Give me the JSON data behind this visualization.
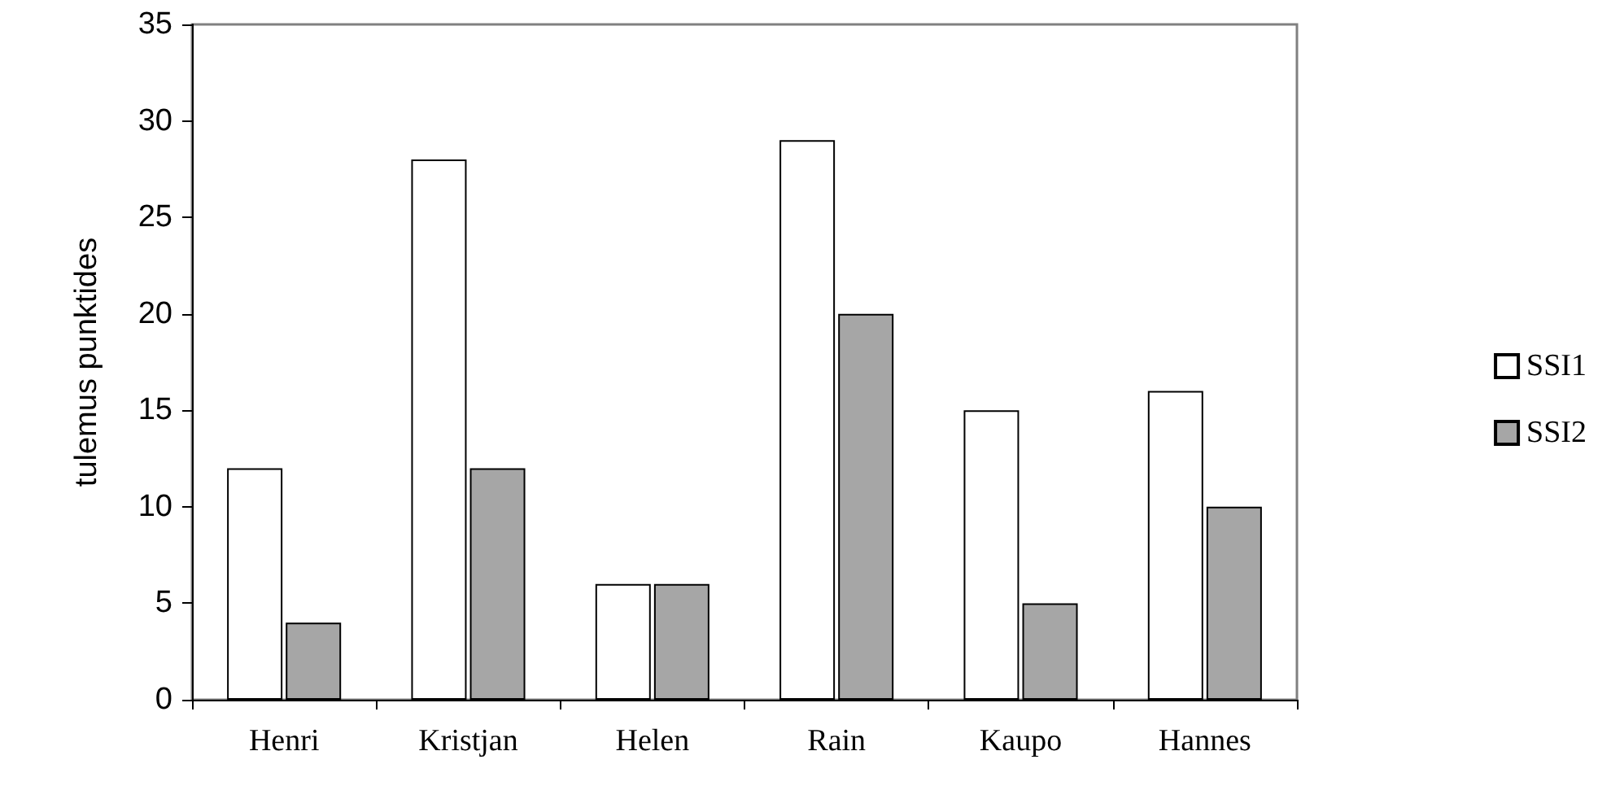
{
  "chart_data": {
    "type": "bar",
    "ylabel": "tulemus punktides",
    "categories": [
      "Henri",
      "Kristjan",
      "Helen",
      "Rain",
      "Kaupo",
      "Hannes"
    ],
    "series": [
      {
        "name": "SSI1",
        "color": "#ffffff",
        "values": [
          12,
          28,
          6,
          29,
          15,
          16
        ]
      },
      {
        "name": "SSI2",
        "color": "#a6a6a6",
        "values": [
          4,
          12,
          6,
          20,
          5,
          10
        ]
      }
    ],
    "ylim": [
      0,
      35
    ],
    "yticks": [
      0,
      5,
      10,
      15,
      20,
      25,
      30,
      35
    ],
    "grid": false,
    "legend": "right"
  }
}
